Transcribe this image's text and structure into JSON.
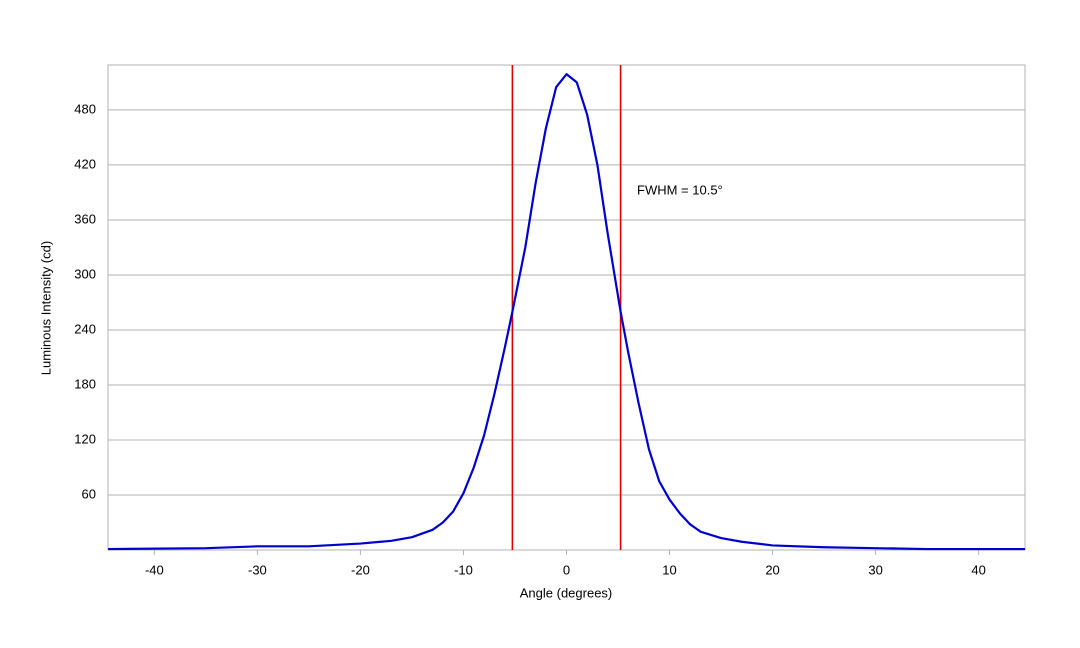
{
  "chart_data": {
    "type": "line",
    "x_label": "Angle (degrees)",
    "y_label": "Luminous Intensity (cd)",
    "annotation": "FWHM = 10.5°",
    "x": [
      -44.5,
      -35,
      -30,
      -25,
      -20,
      -17,
      -15,
      -13,
      -12,
      -11,
      -10,
      -9,
      -8,
      -7,
      -6,
      -5.25,
      -4,
      -3,
      -2,
      -1,
      0,
      1,
      2,
      3,
      4,
      5.25,
      6,
      7,
      8,
      9,
      10,
      11,
      12,
      13,
      15,
      17,
      20,
      25,
      30,
      35,
      44.5
    ],
    "series": [
      {
        "color": "#0000cc",
        "values": [
          1,
          2,
          4,
          4,
          7,
          10,
          14,
          22,
          30,
          42,
          62,
          90,
          125,
          170,
          220,
          260,
          330,
          400,
          460,
          505,
          519,
          510,
          475,
          420,
          345,
          260,
          215,
          160,
          110,
          75,
          55,
          40,
          28,
          20,
          13,
          9,
          5,
          3,
          2,
          1,
          1
        ]
      }
    ],
    "vlines": [
      -5.25,
      5.25
    ],
    "vline_color": "#dd0000",
    "xlim": [
      -44.5,
      44.5
    ],
    "xticks": [
      -40,
      -30,
      -20,
      -10,
      0,
      10,
      20,
      30,
      40
    ],
    "ylim": [
      0,
      529
    ],
    "yticks": [
      60,
      120,
      180,
      240,
      300,
      360,
      420,
      480
    ],
    "grid": true
  }
}
